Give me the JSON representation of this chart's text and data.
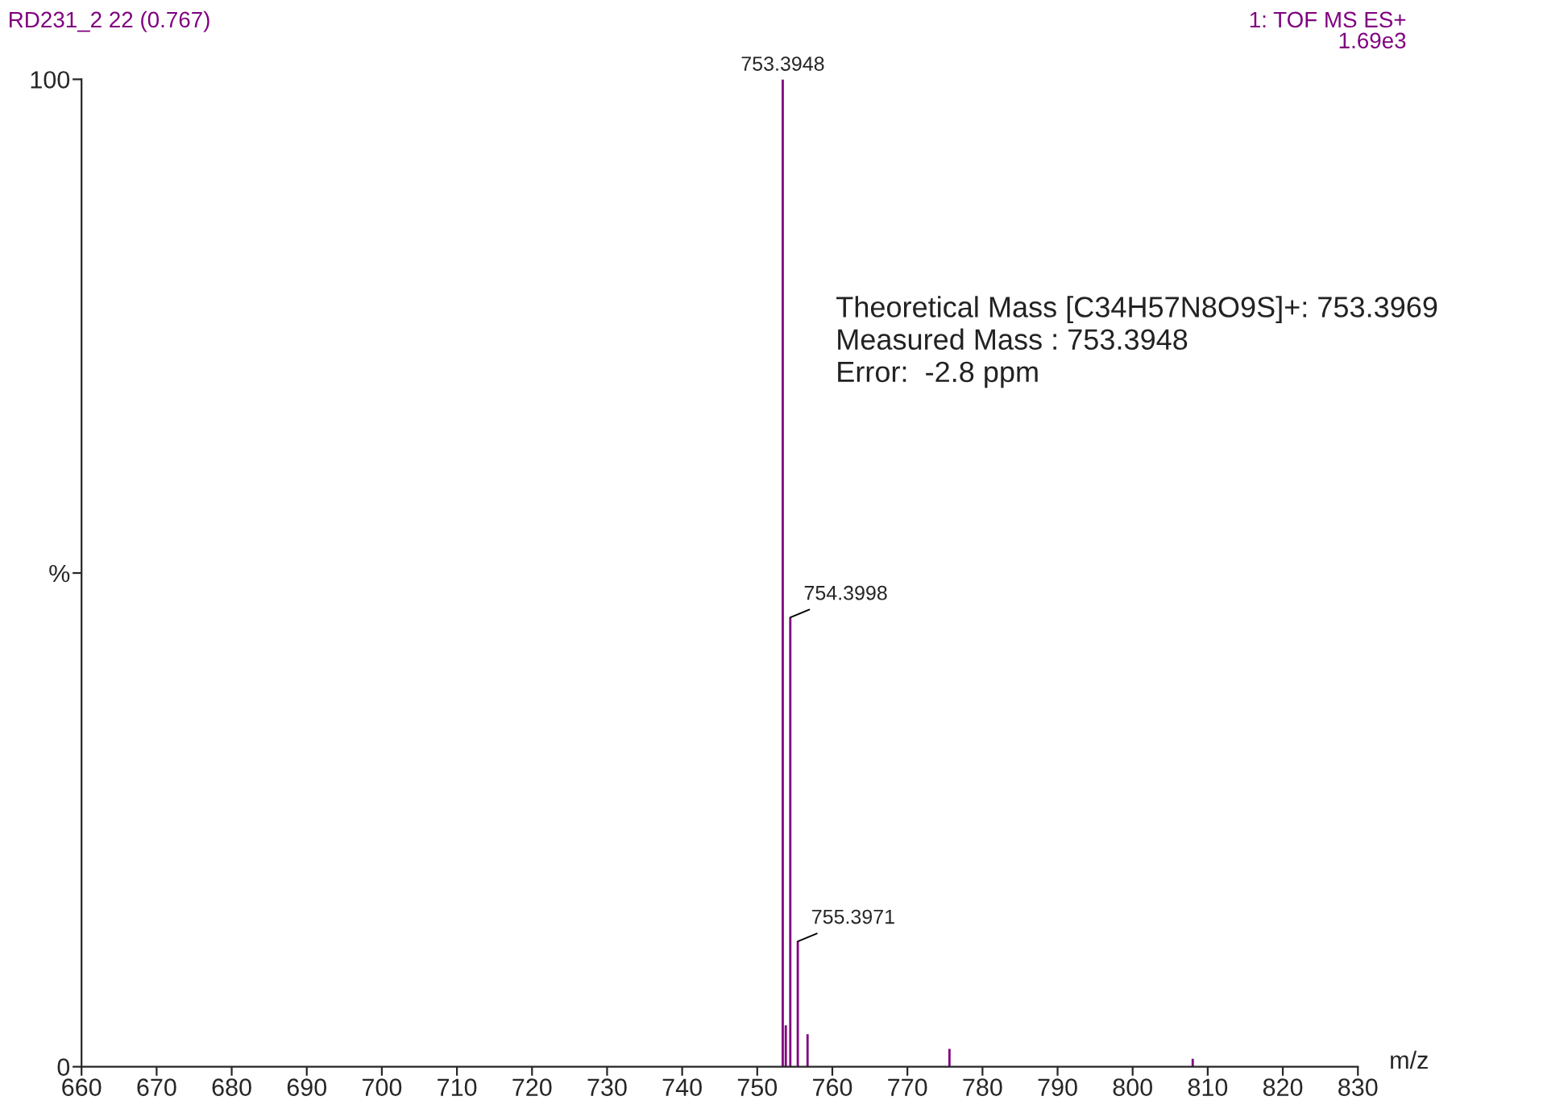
{
  "chart_data": {
    "type": "bar",
    "title": "RD231_2 22 (0.767)",
    "xlabel": "m/z",
    "x": [
      753.3948,
      753.8,
      754.3998,
      755.3971,
      756.7,
      775.6,
      808.0
    ],
    "series": [
      {
        "color": "#800080",
        "values": [
          100,
          4.2,
          45.5,
          12.7,
          3.3,
          1.8,
          0.8
        ]
      }
    ],
    "xlim": [
      660,
      830
    ],
    "xticks": [
      660,
      670,
      680,
      690,
      700,
      710,
      720,
      730,
      740,
      750,
      760,
      770,
      780,
      790,
      800,
      810,
      820,
      830
    ],
    "ylim": [
      0,
      100
    ],
    "yticks": [
      0,
      {
        "value": 50,
        "label": "%"
      },
      100
    ],
    "grid": false,
    "legend": false,
    "annotations": [
      "1: TOF MS ES+\n1.69e3",
      "Theoretical Mass [C34H57N8O9S]+: 753.3969\nMeasured Mass : 753.3948\nError:  -2.8 ppm",
      {
        "text": "753.3948",
        "x": 753.3948,
        "y": 100
      },
      {
        "text": "754.3998",
        "x": 754.3998,
        "y": 45.5
      },
      {
        "text": "755.3971",
        "x": 755.3971,
        "y": 12.7
      }
    ]
  }
}
